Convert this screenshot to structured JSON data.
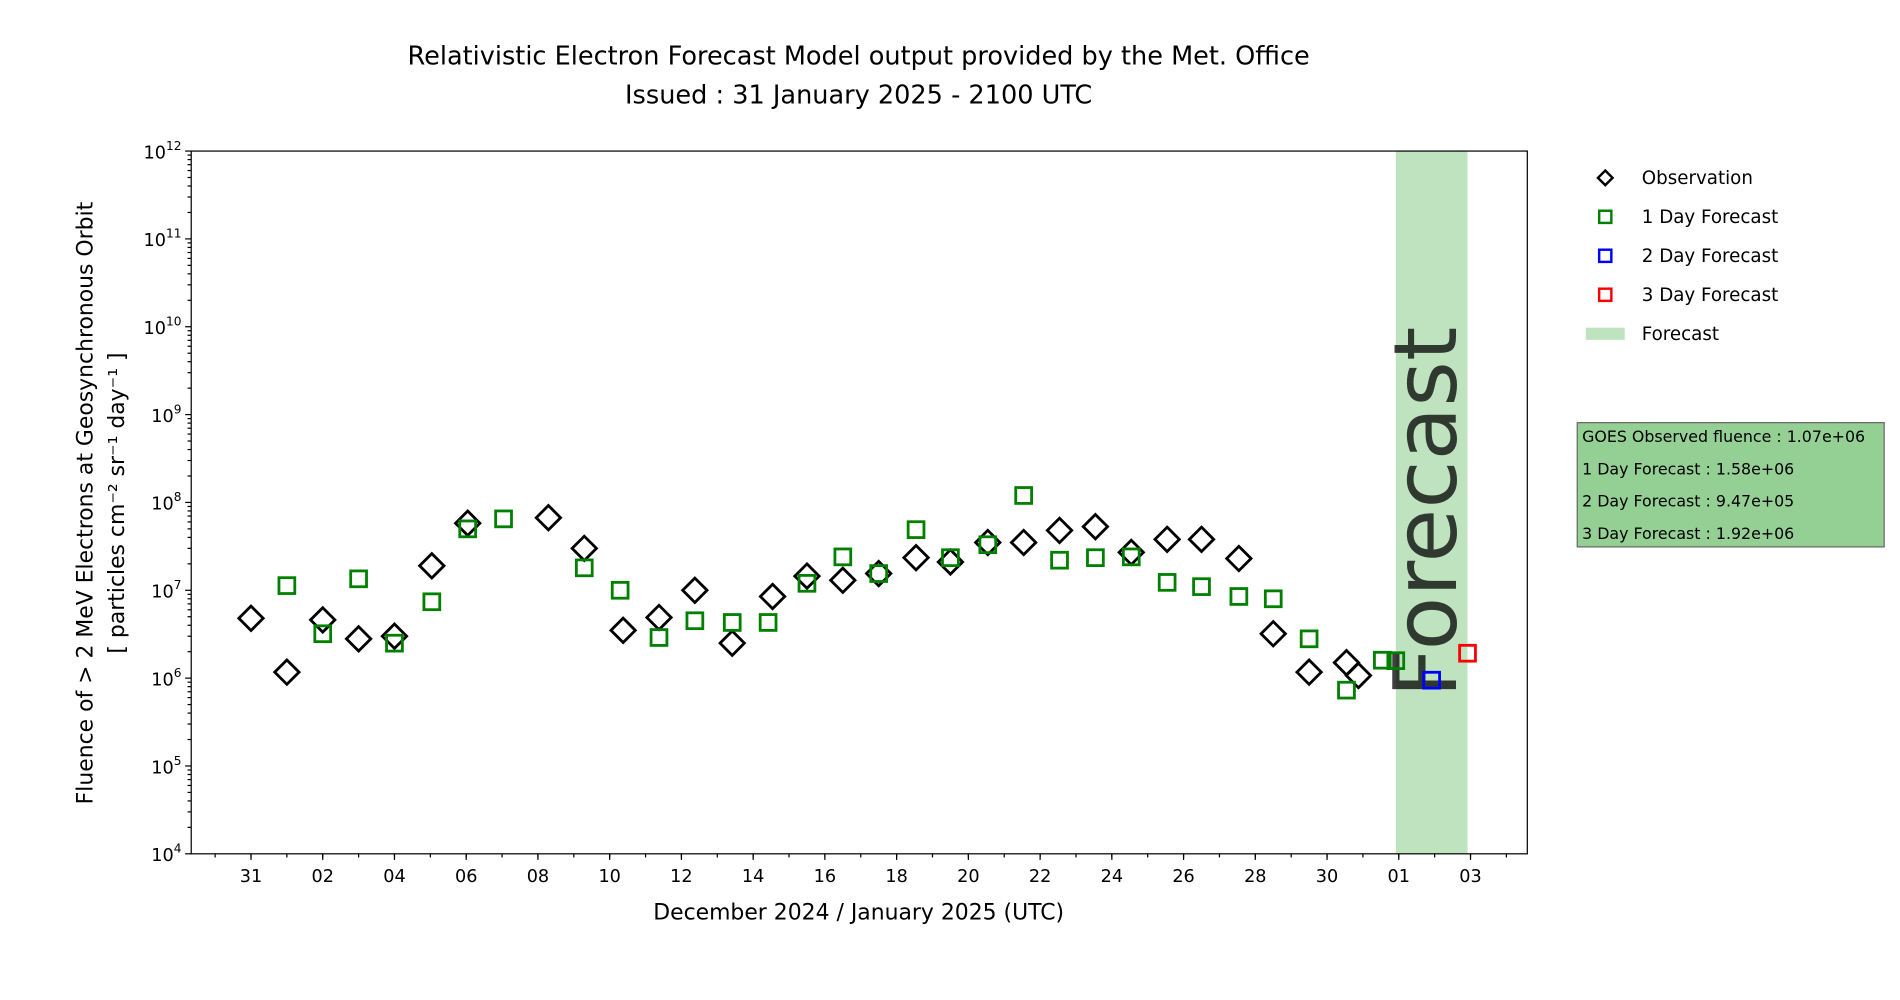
{
  "chart_data": {
    "type": "scatter",
    "title": "Relativistic Electron Forecast Model output provided by the Met. Office",
    "subtitle": "Issued : 31 January 2025 - 2100 UTC",
    "xlabel": "December 2024 / January 2025 (UTC)",
    "ylabel_line1": "Fluence of > 2 MeV Electrons at Geosynchronous Orbit",
    "ylabel_line2": "[ particles cm⁻² sr⁻¹ day⁻¹ ]",
    "y_scale": "log",
    "ylim": [
      10000.0,
      1000000000000.0
    ],
    "xlim": [
      "2024-12-29T08:00",
      "2025-02-04T14:00"
    ],
    "x_tick_labels": [
      {
        "date": "2024-12-31",
        "label": "31"
      },
      {
        "date": "2025-01-02",
        "label": "02"
      },
      {
        "date": "2025-01-04",
        "label": "04"
      },
      {
        "date": "2025-01-06",
        "label": "06"
      },
      {
        "date": "2025-01-08",
        "label": "08"
      },
      {
        "date": "2025-01-10",
        "label": "10"
      },
      {
        "date": "2025-01-12",
        "label": "12"
      },
      {
        "date": "2025-01-14",
        "label": "14"
      },
      {
        "date": "2025-01-16",
        "label": "16"
      },
      {
        "date": "2025-01-18",
        "label": "18"
      },
      {
        "date": "2025-01-20",
        "label": "20"
      },
      {
        "date": "2025-01-22",
        "label": "22"
      },
      {
        "date": "2025-01-24",
        "label": "24"
      },
      {
        "date": "2025-01-26",
        "label": "26"
      },
      {
        "date": "2025-01-28",
        "label": "28"
      },
      {
        "date": "2025-01-30",
        "label": "30"
      },
      {
        "date": "2025-02-01",
        "label": "01"
      },
      {
        "date": "2025-02-03",
        "label": "03"
      }
    ],
    "y_tick_exponents": [
      4,
      5,
      6,
      7,
      8,
      9,
      10,
      11,
      12
    ],
    "grid": false,
    "legend_placement": "outside-right-top",
    "forecast_band": {
      "start": "2025-01-31T22:00",
      "end": "2025-02-02T22:00",
      "label": "Forecast",
      "color": "#bfe3bf"
    },
    "series": [
      {
        "name": "Observation",
        "marker": "diamond",
        "color": "#000000",
        "points": [
          [
            "2024-12-31T00:00",
            4800000.0
          ],
          [
            "2025-01-01T00:00",
            1170000.0
          ],
          [
            "2025-01-02T00:00",
            4600000.0
          ],
          [
            "2025-01-03T00:00",
            2800000.0
          ],
          [
            "2025-01-04T00:00",
            3000000.0
          ],
          [
            "2025-01-05T01:00",
            19000000.0
          ],
          [
            "2025-01-06T01:00",
            58000000.0
          ],
          [
            "2025-01-08T07:00",
            67000000.0
          ],
          [
            "2025-01-09T07:00",
            30000000.0
          ],
          [
            "2025-01-10T09:00",
            3500000.0
          ],
          [
            "2025-01-11T09:00",
            4900000.0
          ],
          [
            "2025-01-12T09:00",
            10000000.0
          ],
          [
            "2025-01-13T10:00",
            2500000.0
          ],
          [
            "2025-01-14T13:00",
            8500000.0
          ],
          [
            "2025-01-15T12:00",
            14500000.0
          ],
          [
            "2025-01-16T12:00",
            13000000.0
          ],
          [
            "2025-01-17T12:00",
            15500000.0
          ],
          [
            "2025-01-18T13:00",
            23500000.0
          ],
          [
            "2025-01-19T12:00",
            21000000.0
          ],
          [
            "2025-01-20T13:00",
            35000000.0
          ],
          [
            "2025-01-21T13:00",
            35000000.0
          ],
          [
            "2025-01-22T13:00",
            48000000.0
          ],
          [
            "2025-01-23T13:00",
            53000000.0
          ],
          [
            "2025-01-24T13:00",
            27000000.0
          ],
          [
            "2025-01-25T13:00",
            38000000.0
          ],
          [
            "2025-01-26T12:00",
            38000000.0
          ],
          [
            "2025-01-27T13:00",
            23000000.0
          ],
          [
            "2025-01-28T12:00",
            3200000.0
          ],
          [
            "2025-01-29T12:00",
            1170000.0
          ],
          [
            "2025-01-30T13:00",
            1500000.0
          ],
          [
            "2025-01-30T21:00",
            1070000.0
          ]
        ]
      },
      {
        "name": "1 Day Forecast",
        "marker": "square",
        "color": "#008000",
        "points": [
          [
            "2025-01-01T00:00",
            11300000.0
          ],
          [
            "2025-01-02T00:00",
            3200000.0
          ],
          [
            "2025-01-03T00:00",
            13500000.0
          ],
          [
            "2025-01-04T00:00",
            2500000.0
          ],
          [
            "2025-01-05T01:00",
            7400000.0
          ],
          [
            "2025-01-06T01:00",
            50000000.0
          ],
          [
            "2025-01-07T01:00",
            65000000.0
          ],
          [
            "2025-01-09T07:00",
            18000000.0
          ],
          [
            "2025-01-10T07:00",
            10000000.0
          ],
          [
            "2025-01-11T09:00",
            2900000.0
          ],
          [
            "2025-01-12T09:00",
            4500000.0
          ],
          [
            "2025-01-13T10:00",
            4300000.0
          ],
          [
            "2025-01-14T10:00",
            4300000.0
          ],
          [
            "2025-01-15T12:00",
            12000000.0
          ],
          [
            "2025-01-16T12:00",
            24000000.0
          ],
          [
            "2025-01-17T12:00",
            15500000.0
          ],
          [
            "2025-01-18T13:00",
            49000000.0
          ],
          [
            "2025-01-19T12:00",
            23500000.0
          ],
          [
            "2025-01-20T13:00",
            33000000.0
          ],
          [
            "2025-01-21T13:00",
            120000000.0
          ],
          [
            "2025-01-22T13:00",
            22000000.0
          ],
          [
            "2025-01-23T13:00",
            23500000.0
          ],
          [
            "2025-01-24T13:00",
            24000000.0
          ],
          [
            "2025-01-25T13:00",
            12300000.0
          ],
          [
            "2025-01-26T12:00",
            11000000.0
          ],
          [
            "2025-01-27T13:00",
            8500000.0
          ],
          [
            "2025-01-28T12:00",
            8000000.0
          ],
          [
            "2025-01-29T12:00",
            2800000.0
          ],
          [
            "2025-01-30T13:00",
            730000.0
          ],
          [
            "2025-01-31T13:00",
            1600000.0
          ],
          [
            "2025-01-31T22:00",
            1580000.0
          ]
        ]
      },
      {
        "name": "2 Day Forecast",
        "marker": "square",
        "color": "#0000ff",
        "points": [
          [
            "2025-02-01T22:00",
            947000.0
          ]
        ]
      },
      {
        "name": "3 Day Forecast",
        "marker": "square",
        "color": "#ff0000",
        "points": [
          [
            "2025-02-02T22:00",
            1920000.0
          ]
        ]
      }
    ],
    "legend": [
      "Observation",
      "1 Day Forecast",
      "2 Day Forecast",
      "3 Day Forecast",
      "Forecast"
    ],
    "info_box": {
      "background": "#94cf94",
      "lines": [
        "GOES Observed fluence : 1.07e+06",
        "1 Day Forecast : 1.58e+06",
        "2 Day Forecast : 9.47e+05",
        "3 Day Forecast : 1.92e+06"
      ]
    }
  }
}
